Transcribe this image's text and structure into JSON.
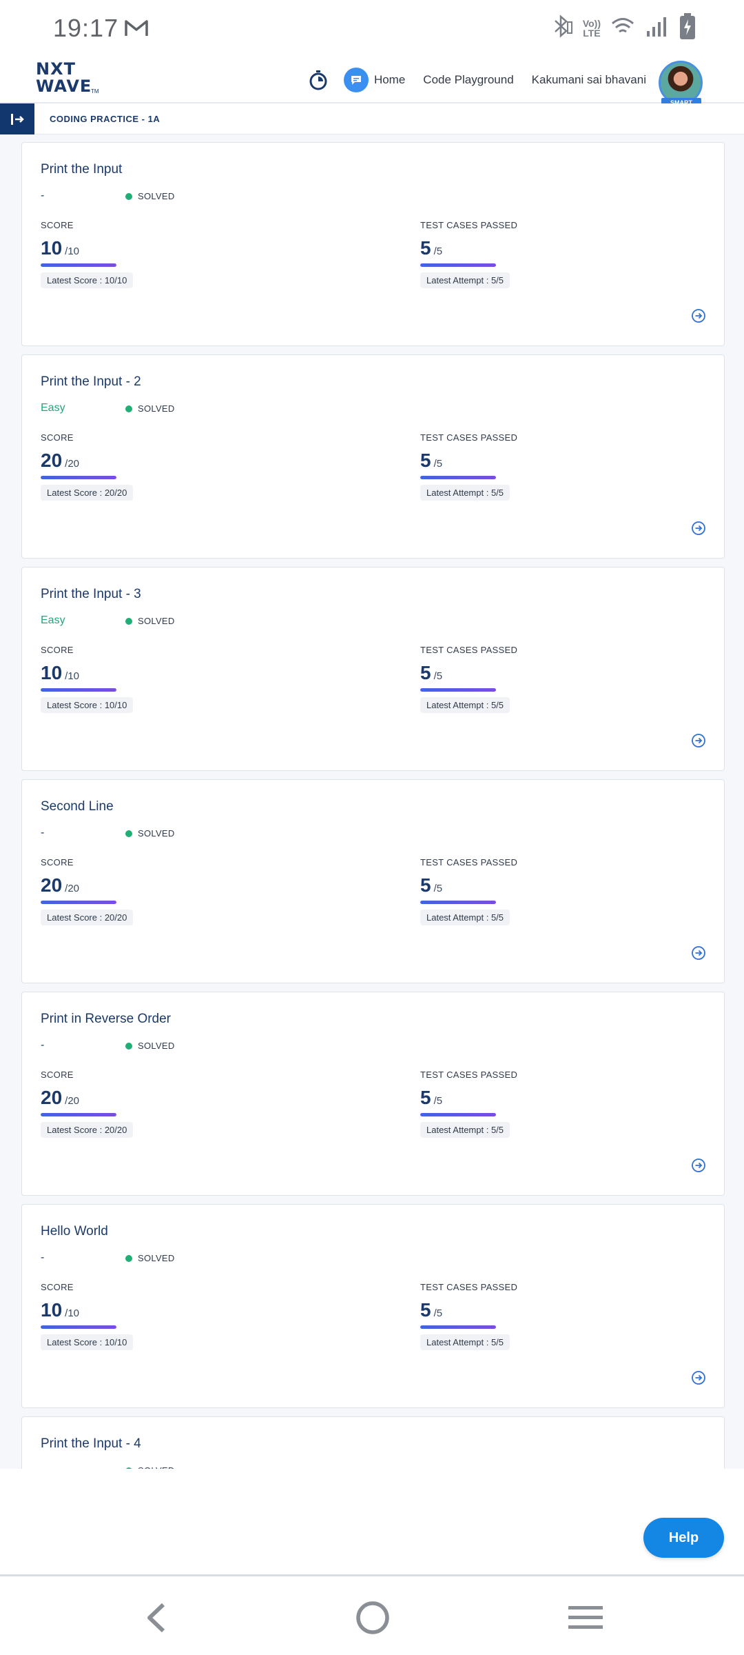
{
  "status_bar": {
    "time": "19:17",
    "icons": [
      "gmail-icon",
      "bluetooth-icon",
      "volte-icon",
      "wifi-icon",
      "signal-icon",
      "battery-charging-icon"
    ],
    "volte_label_1": "Vo))",
    "volte_label_2": "LTE"
  },
  "header": {
    "logo_line1": "NXT",
    "logo_line2": "WAVE",
    "logo_tm": "TM",
    "nav": [
      "Home",
      "Code Playground"
    ],
    "user_name": "Kakumani sai bhavani",
    "badge": "SMART",
    "icons": [
      "stopwatch-icon",
      "chat-icon"
    ]
  },
  "breadcrumb": {
    "title": "CODING PRACTICE - 1A"
  },
  "labels": {
    "score": "SCORE",
    "test_cases": "TEST CASES PASSED",
    "status": "SOLVED"
  },
  "questions": [
    {
      "title": "Print the Input",
      "level": "-",
      "score": "10",
      "score_total": "/10",
      "score_fraction": 1.0,
      "latest_score": "Latest Score : 10/10",
      "tests": "5",
      "tests_total": "/5",
      "tests_fraction": 1.0,
      "latest_attempt": "Latest Attempt : 5/5"
    },
    {
      "title": "Print the Input - 2",
      "level": "Easy",
      "score": "20",
      "score_total": "/20",
      "score_fraction": 1.0,
      "latest_score": "Latest Score : 20/20",
      "tests": "5",
      "tests_total": "/5",
      "tests_fraction": 1.0,
      "latest_attempt": "Latest Attempt : 5/5"
    },
    {
      "title": "Print the Input - 3",
      "level": "Easy",
      "score": "10",
      "score_total": "/10",
      "score_fraction": 1.0,
      "latest_score": "Latest Score : 10/10",
      "tests": "5",
      "tests_total": "/5",
      "tests_fraction": 1.0,
      "latest_attempt": "Latest Attempt : 5/5"
    },
    {
      "title": "Second Line",
      "level": "-",
      "score": "20",
      "score_total": "/20",
      "score_fraction": 1.0,
      "latest_score": "Latest Score : 20/20",
      "tests": "5",
      "tests_total": "/5",
      "tests_fraction": 1.0,
      "latest_attempt": "Latest Attempt : 5/5"
    },
    {
      "title": "Print in Reverse Order",
      "level": "-",
      "score": "20",
      "score_total": "/20",
      "score_fraction": 1.0,
      "latest_score": "Latest Score : 20/20",
      "tests": "5",
      "tests_total": "/5",
      "tests_fraction": 1.0,
      "latest_attempt": "Latest Attempt : 5/5"
    },
    {
      "title": "Hello World",
      "level": "-",
      "score": "10",
      "score_total": "/10",
      "score_fraction": 1.0,
      "latest_score": "Latest Score : 10/10",
      "tests": "5",
      "tests_total": "/5",
      "tests_fraction": 1.0,
      "latest_attempt": "Latest Attempt : 5/5"
    },
    {
      "title": "Print the Input - 4",
      "level": "-"
    }
  ],
  "help": {
    "label": "Help"
  },
  "system_nav": {
    "icons": [
      "back-icon",
      "home-circle-icon",
      "recents-menu-icon"
    ]
  },
  "colors": {
    "brand_navy": "#1b3a6b",
    "easy_green": "#20a878",
    "solved_green": "#1fae76",
    "help_blue": "#1486e3",
    "progress_start": "#3e66df",
    "progress_end": "#7a4de0"
  }
}
